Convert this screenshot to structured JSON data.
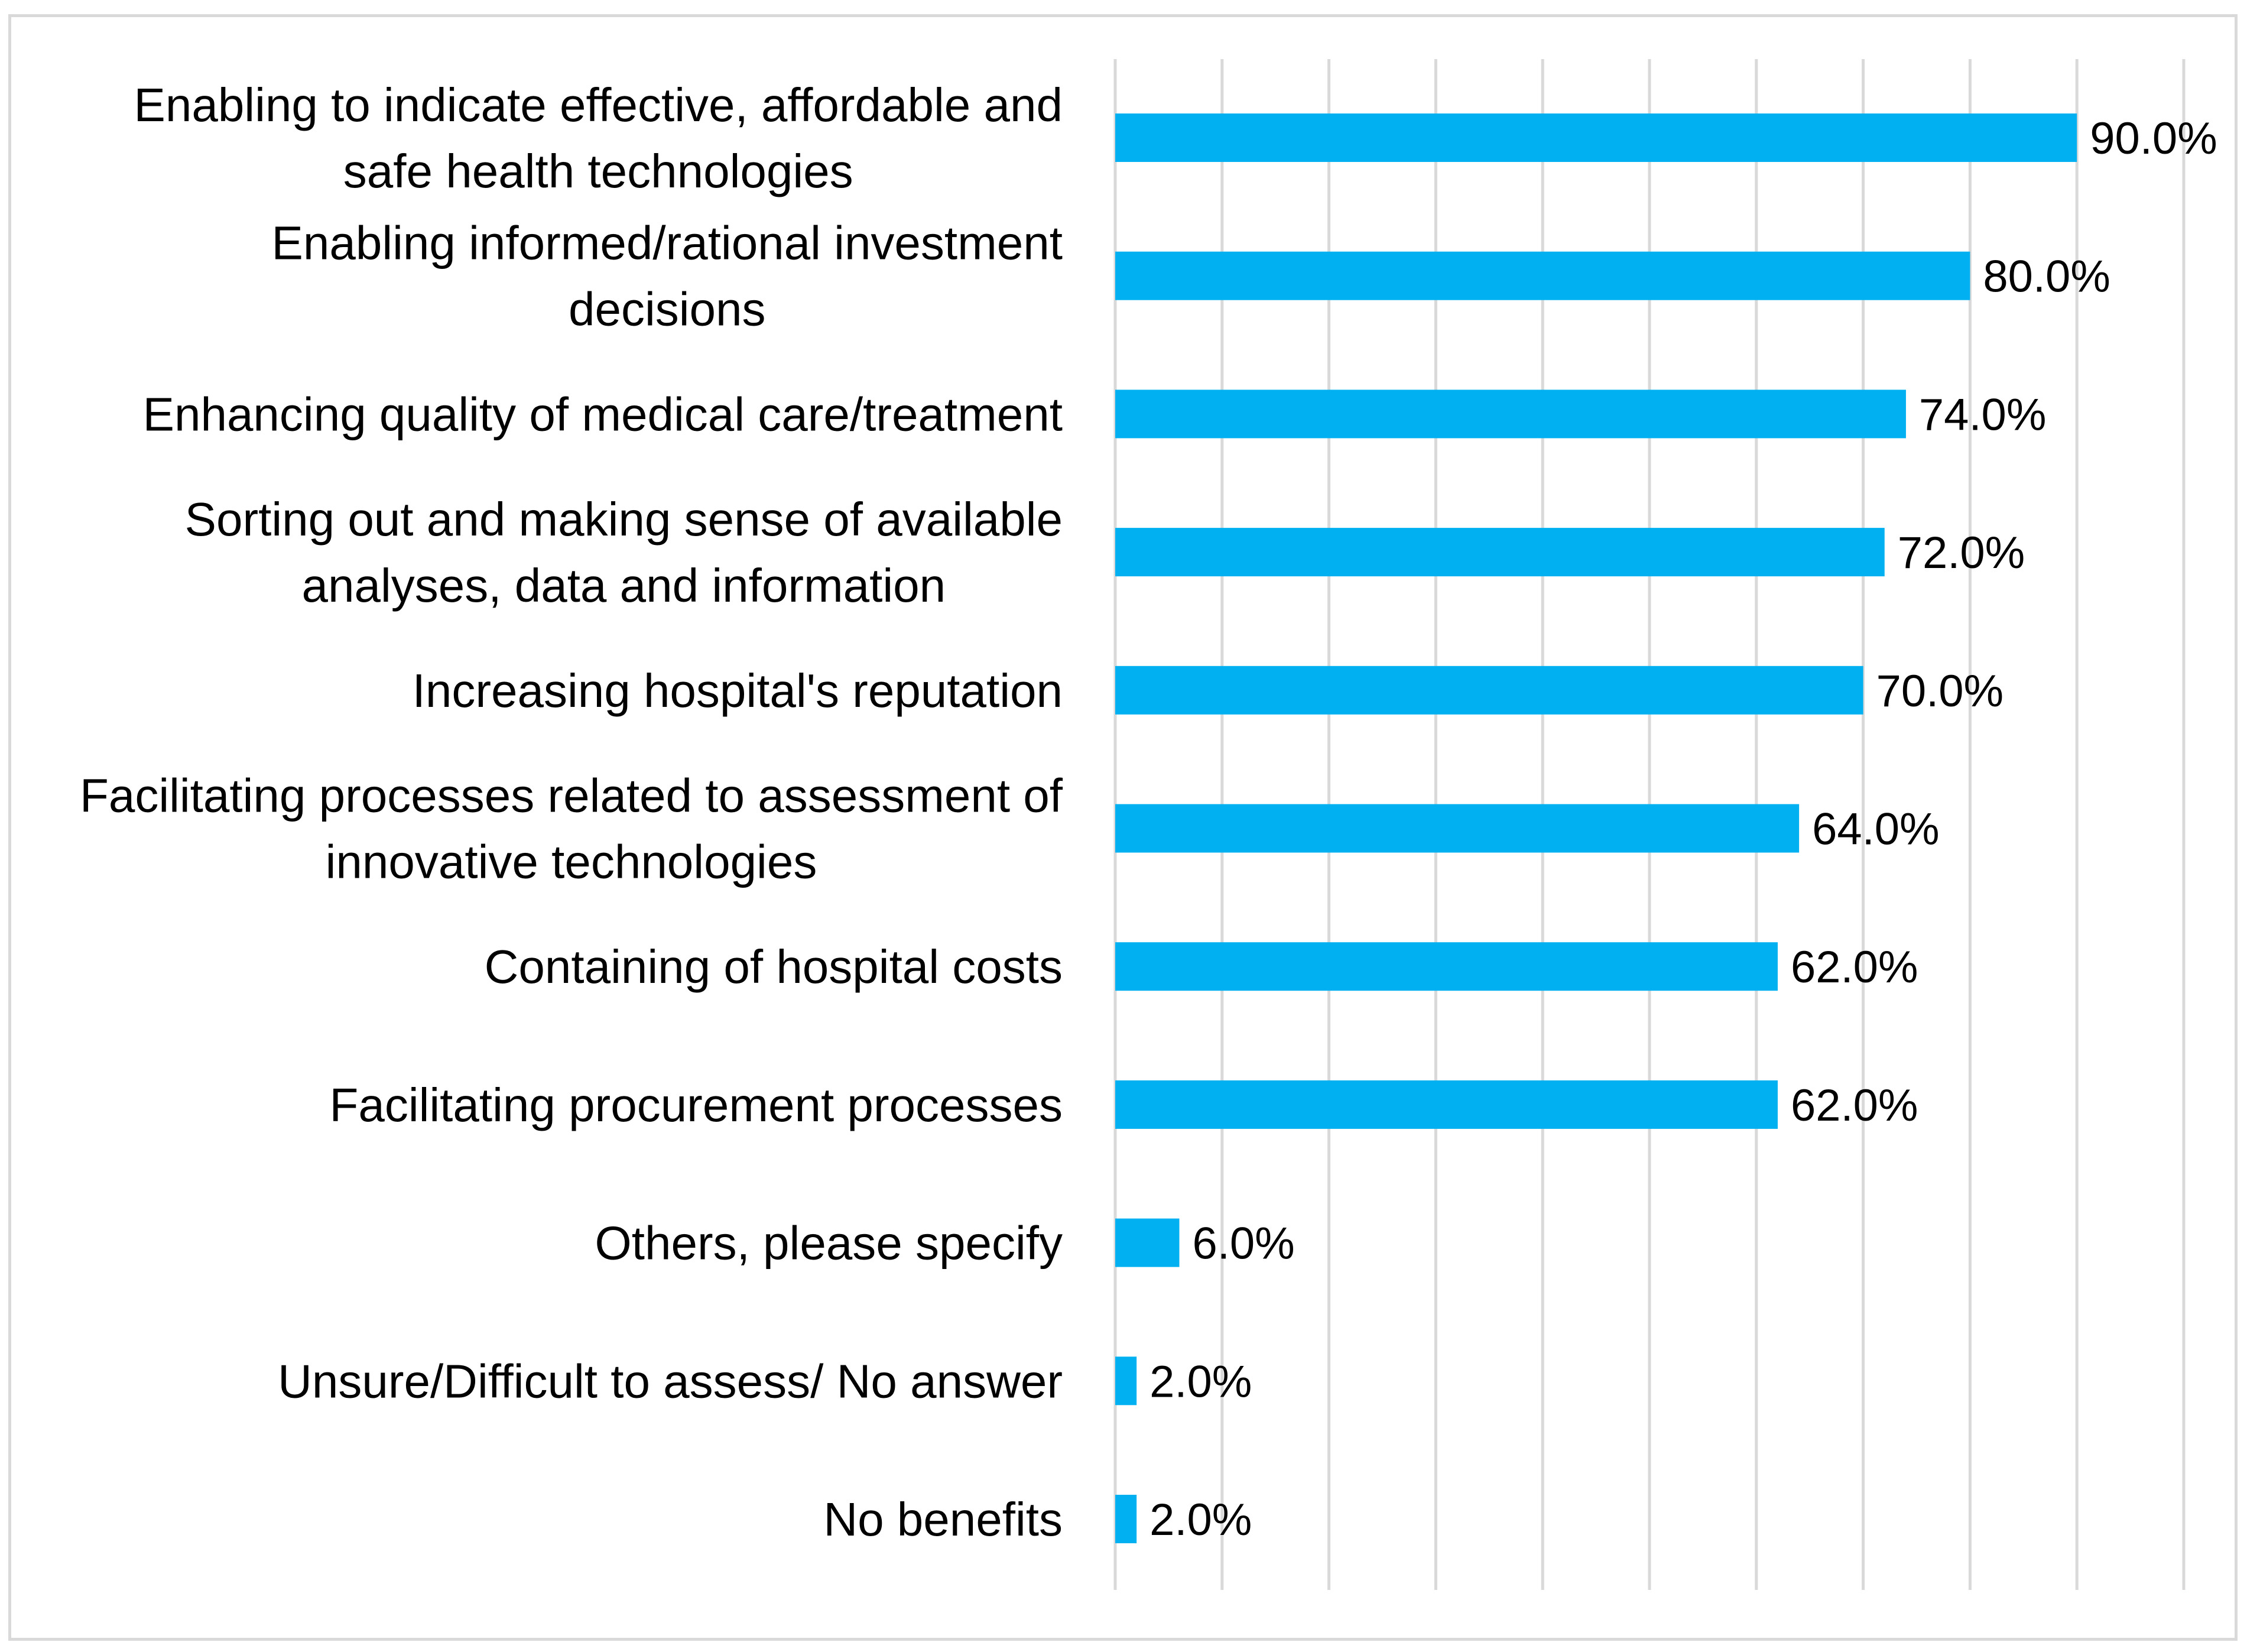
{
  "chart_data": {
    "type": "bar",
    "orientation": "horizontal",
    "title": "",
    "xlabel": "",
    "ylabel": "",
    "xlim": [
      0,
      100
    ],
    "grid": true,
    "legend": "none",
    "bar_color": "#00b0f0",
    "grid_color": "#d9d9d9",
    "categories": [
      [
        "Enabling to indicate effective, affordable and",
        "safe health technologies"
      ],
      [
        "Enabling informed/rational investment",
        "decisions"
      ],
      [
        "Enhancing quality of medical care/treatment"
      ],
      [
        "Sorting out and making sense of available",
        "analyses, data and information"
      ],
      [
        "Increasing hospital's reputation"
      ],
      [
        "Facilitating processes related to assessment of",
        "innovative technologies"
      ],
      [
        "Containing of hospital costs"
      ],
      [
        "Facilitating procurement processes"
      ],
      [
        "Others, please specify"
      ],
      [
        "Unsure/Difficult to assess/ No answer"
      ],
      [
        "No benefits"
      ]
    ],
    "values": [
      90.0,
      80.0,
      74.0,
      72.0,
      70.0,
      64.0,
      62.0,
      62.0,
      6.0,
      2.0,
      2.0
    ],
    "value_labels": [
      "90.0%",
      "80.0%",
      "74.0%",
      "72.0%",
      "70.0%",
      "64.0%",
      "62.0%",
      "62.0%",
      "6.0%",
      "2.0%",
      "2.0%"
    ]
  }
}
